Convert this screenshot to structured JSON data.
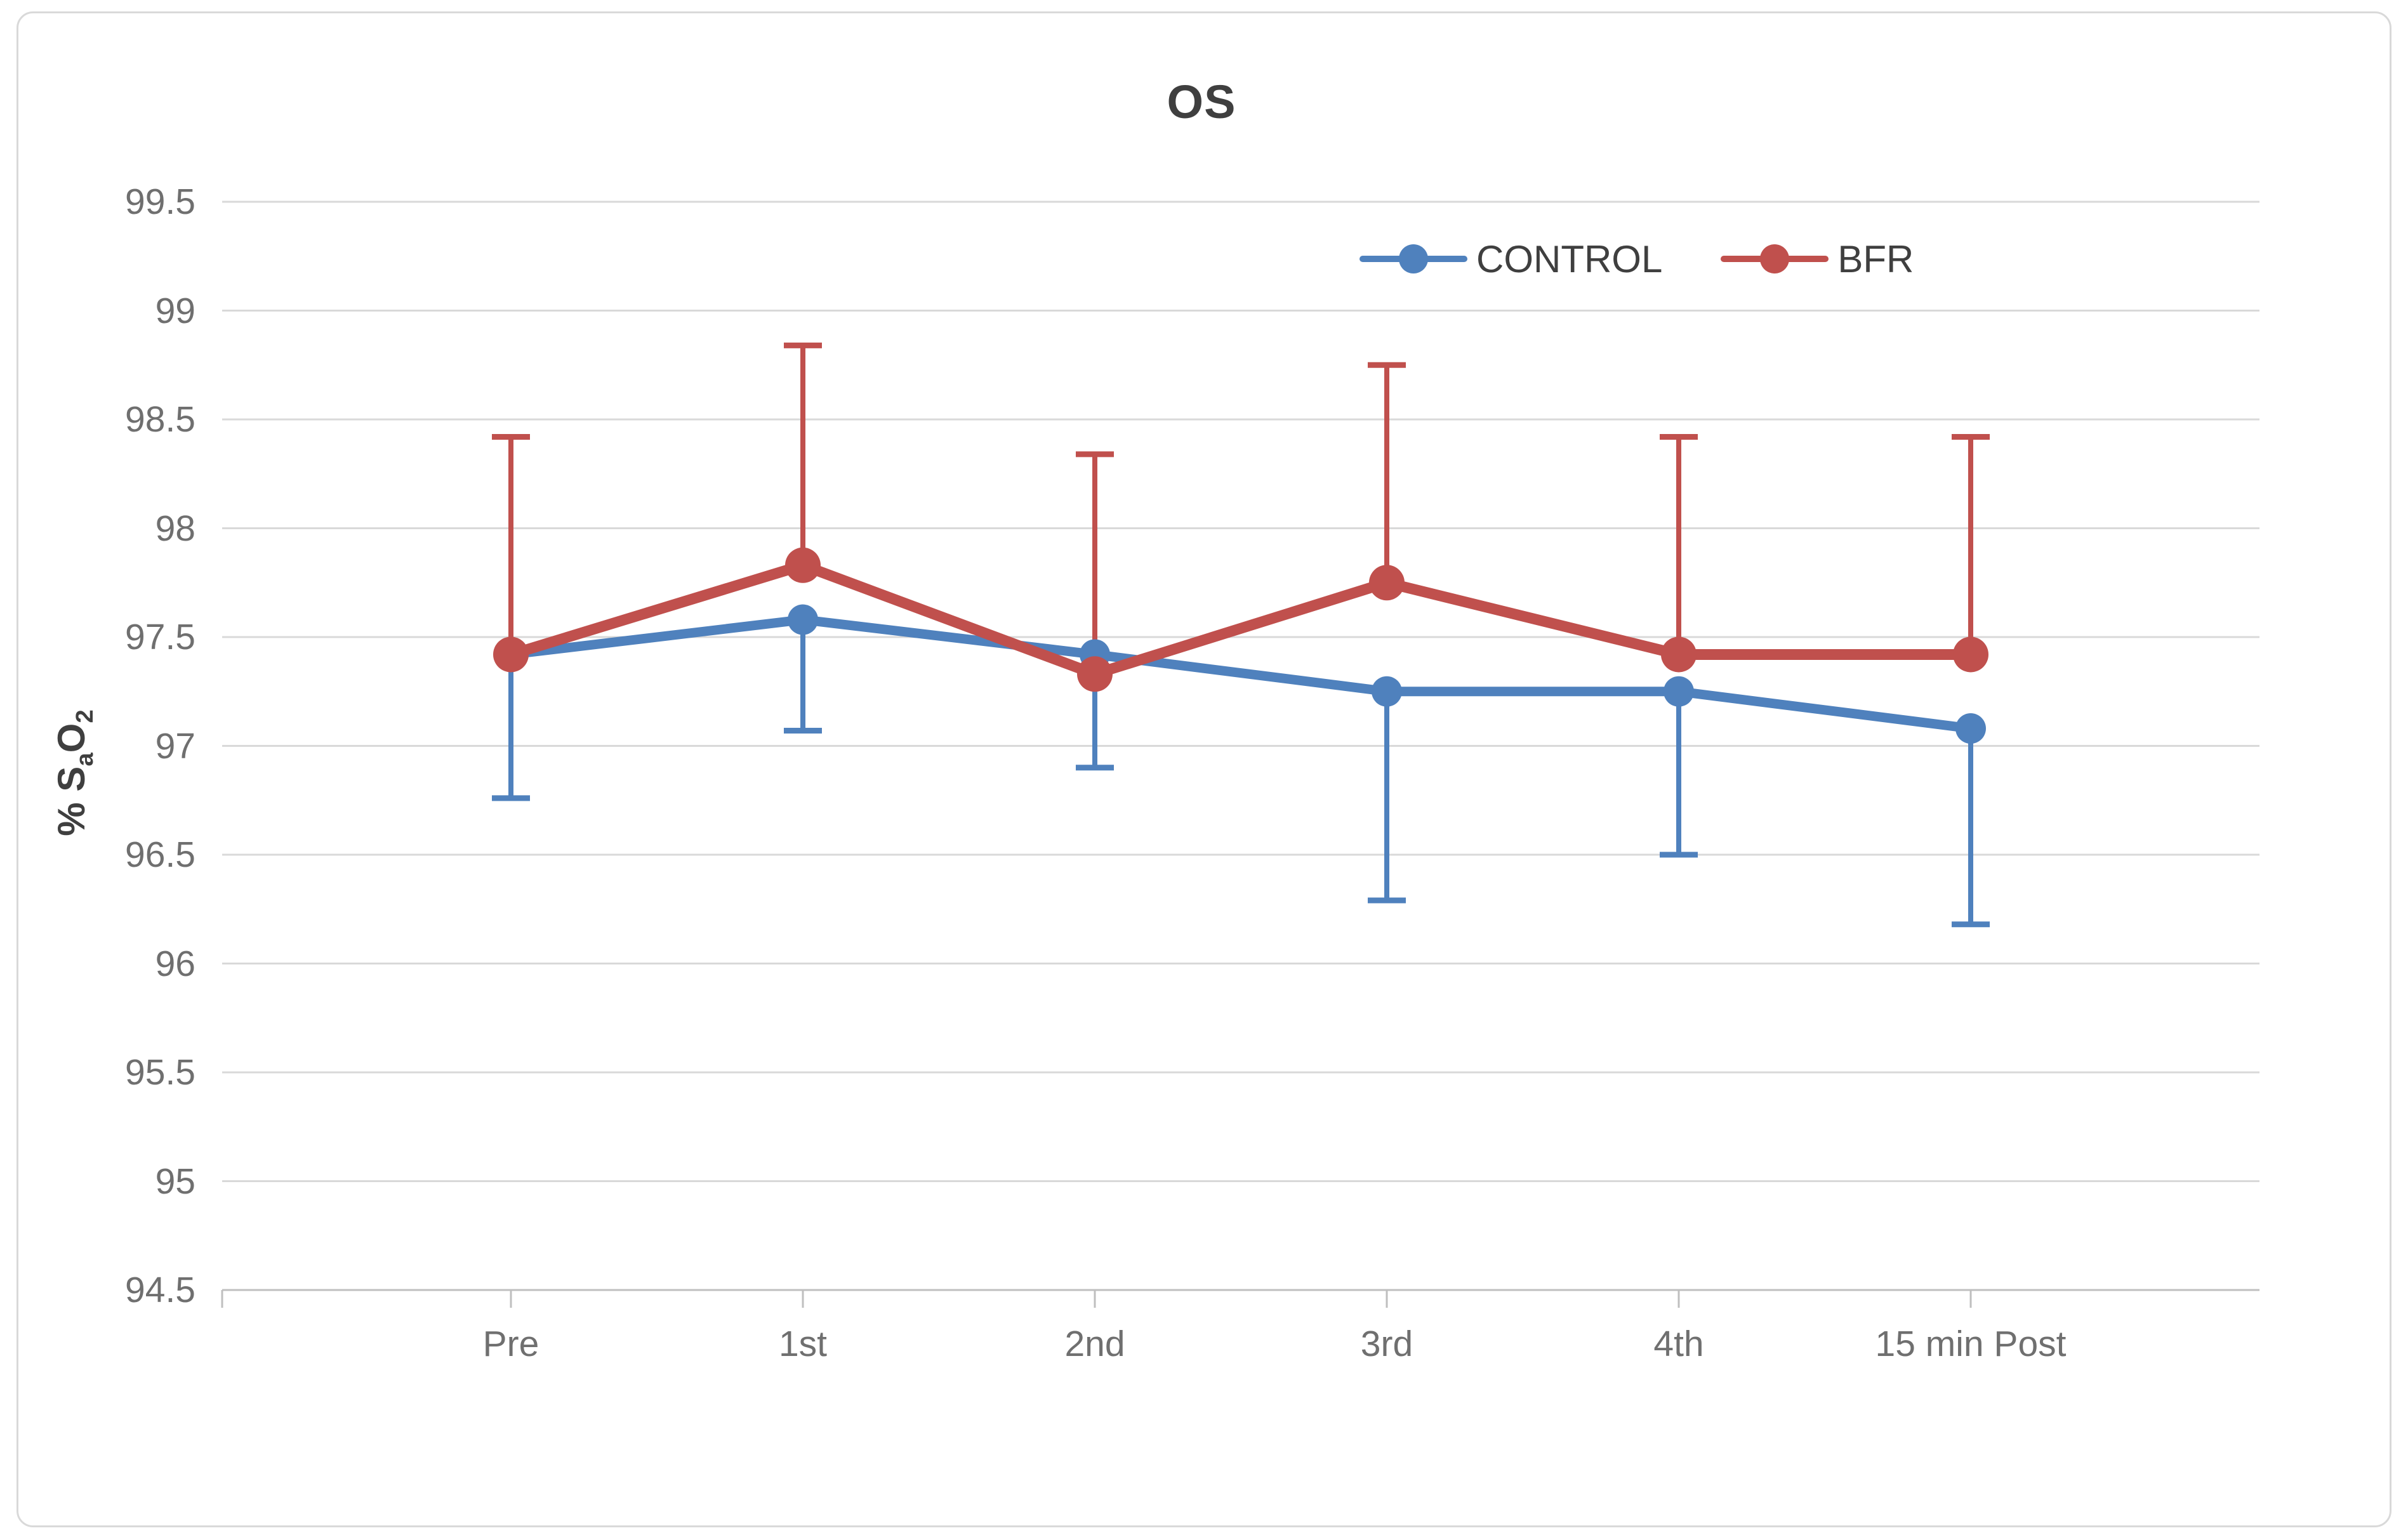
{
  "chart_data": {
    "type": "line",
    "title": "OS",
    "ylabel": "% SaO2",
    "ylabel_parts": [
      "% S",
      "a",
      "O",
      "2"
    ],
    "xlabel": "",
    "categories": [
      "Pre",
      "1st",
      "2nd",
      "3rd",
      "4th",
      "15 min Post"
    ],
    "yticks": [
      "99.5",
      "99",
      "98.5",
      "98",
      "97.5",
      "97",
      "96.5",
      "96",
      "95.5",
      "95",
      "94.5"
    ],
    "ylim": [
      94.5,
      99.5
    ],
    "grid": true,
    "legend_position": "top-right",
    "series": [
      {
        "name": "CONTROL",
        "color": "#4F81BD",
        "values": [
          97.42,
          97.58,
          97.42,
          97.25,
          97.25,
          97.08
        ],
        "error_direction": "down",
        "error_caps": [
          96.76,
          97.07,
          96.9,
          96.29,
          96.5,
          96.18
        ]
      },
      {
        "name": "BFR",
        "color": "#C0504D",
        "values": [
          97.42,
          97.83,
          97.33,
          97.75,
          97.42,
          97.42
        ],
        "error_direction": "up",
        "error_caps": [
          98.42,
          98.84,
          98.34,
          98.75,
          98.42,
          98.42
        ]
      }
    ],
    "colors": {
      "gridline": "#D9D9D9",
      "axis": "#BFBFBF",
      "tick_label": "#6F6F6F",
      "text": "#3F3F3F"
    }
  }
}
